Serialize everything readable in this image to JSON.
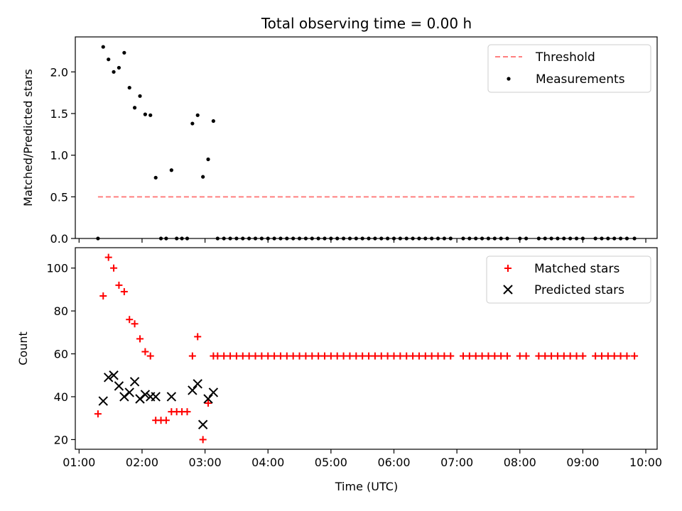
{
  "chart_data": [
    {
      "type": "scatter",
      "title": "Total observing time = 0.00 h",
      "xlabel": "",
      "ylabel": "Matched/Predicted stars",
      "x_tick_labels": [],
      "y_ticks": [
        0.0,
        0.5,
        1.0,
        1.5,
        2.0
      ],
      "y_tick_labels": [
        "0.0",
        "0.5",
        "1.0",
        "1.5",
        "2.0"
      ],
      "xlim": [
        0.94,
        10.18
      ],
      "ylim": [
        0.0,
        2.42
      ],
      "legend_position": "upper right",
      "series": [
        {
          "name": "Threshold",
          "kind": "dashed-line",
          "color": "#ff7f7f",
          "x": [
            1.3,
            9.82
          ],
          "y": [
            0.5,
            0.5
          ]
        },
        {
          "name": "Measurements",
          "kind": "dots",
          "color": "#000000",
          "x": [
            1.3,
            1.383,
            1.467,
            1.55,
            1.633,
            1.717,
            1.8,
            1.883,
            1.967,
            2.05,
            2.133,
            2.217,
            2.3,
            2.383,
            2.467,
            2.55,
            2.633,
            2.717,
            2.8,
            2.883,
            2.967,
            3.05,
            3.133,
            3.2,
            3.3,
            3.4,
            3.5,
            3.6,
            3.7,
            3.8,
            3.9,
            4.0,
            4.1,
            4.2,
            4.3,
            4.4,
            4.5,
            4.6,
            4.7,
            4.8,
            4.9,
            5.0,
            5.1,
            5.2,
            5.3,
            5.4,
            5.5,
            5.6,
            5.7,
            5.8,
            5.9,
            6.0,
            6.1,
            6.2,
            6.3,
            6.4,
            6.5,
            6.6,
            6.7,
            6.8,
            6.9,
            7.1,
            7.2,
            7.3,
            7.4,
            7.5,
            7.6,
            7.7,
            7.8,
            8.0,
            8.1,
            8.3,
            8.4,
            8.5,
            8.6,
            8.7,
            8.8,
            8.9,
            9.0,
            9.2,
            9.3,
            9.4,
            9.5,
            9.6,
            9.7,
            9.82
          ],
          "y": [
            0.0,
            2.3,
            2.15,
            2.0,
            2.05,
            2.23,
            1.81,
            1.57,
            1.71,
            1.49,
            1.48,
            0.73,
            0.0,
            0.0,
            0.82,
            0.0,
            0.0,
            0.0,
            1.38,
            1.48,
            0.74,
            0.95,
            1.41,
            0.0,
            0.0,
            0.0,
            0.0,
            0.0,
            0.0,
            0.0,
            0.0,
            0.0,
            0.0,
            0.0,
            0.0,
            0.0,
            0.0,
            0.0,
            0.0,
            0.0,
            0.0,
            0.0,
            0.0,
            0.0,
            0.0,
            0.0,
            0.0,
            0.0,
            0.0,
            0.0,
            0.0,
            0.0,
            0.0,
            0.0,
            0.0,
            0.0,
            0.0,
            0.0,
            0.0,
            0.0,
            0.0,
            0.0,
            0.0,
            0.0,
            0.0,
            0.0,
            0.0,
            0.0,
            0.0,
            0.0,
            0.0,
            0.0,
            0.0,
            0.0,
            0.0,
            0.0,
            0.0,
            0.0,
            0.0,
            0.0,
            0.0,
            0.0,
            0.0,
            0.0,
            0.0,
            0.0
          ]
        }
      ]
    },
    {
      "type": "scatter",
      "title": "",
      "xlabel": "Time (UTC)",
      "ylabel": "Count",
      "x_ticks": [
        1,
        2,
        3,
        4,
        5,
        6,
        7,
        8,
        9,
        10
      ],
      "x_tick_labels": [
        "01:00",
        "02:00",
        "03:00",
        "04:00",
        "05:00",
        "06:00",
        "07:00",
        "08:00",
        "09:00",
        "10:00"
      ],
      "y_ticks": [
        20,
        40,
        60,
        80,
        100
      ],
      "y_tick_labels": [
        "20",
        "40",
        "60",
        "80",
        "100"
      ],
      "xlim": [
        0.94,
        10.18
      ],
      "ylim": [
        15.5,
        109.5
      ],
      "legend_position": "upper right",
      "series": [
        {
          "name": "Matched stars",
          "kind": "plus",
          "color": "#ff0000",
          "x": [
            1.3,
            1.383,
            1.467,
            1.55,
            1.633,
            1.717,
            1.8,
            1.883,
            1.967,
            2.05,
            2.133,
            2.217,
            2.3,
            2.383,
            2.467,
            2.55,
            2.633,
            2.717,
            2.8,
            2.883,
            2.967,
            3.05,
            3.133,
            3.2,
            3.3,
            3.4,
            3.5,
            3.6,
            3.7,
            3.8,
            3.9,
            4.0,
            4.1,
            4.2,
            4.3,
            4.4,
            4.5,
            4.6,
            4.7,
            4.8,
            4.9,
            5.0,
            5.1,
            5.2,
            5.3,
            5.4,
            5.5,
            5.6,
            5.7,
            5.8,
            5.9,
            6.0,
            6.1,
            6.2,
            6.3,
            6.4,
            6.5,
            6.6,
            6.7,
            6.8,
            6.9,
            7.1,
            7.2,
            7.3,
            7.4,
            7.5,
            7.6,
            7.7,
            7.8,
            8.0,
            8.1,
            8.3,
            8.4,
            8.5,
            8.6,
            8.7,
            8.8,
            8.9,
            9.0,
            9.2,
            9.3,
            9.4,
            9.5,
            9.6,
            9.7,
            9.82
          ],
          "y": [
            32,
            87,
            105,
            100,
            92,
            89,
            76,
            74,
            67,
            61,
            59,
            29,
            29,
            29,
            33,
            33,
            33,
            33,
            59,
            68,
            20,
            37,
            59,
            59,
            59,
            59,
            59,
            59,
            59,
            59,
            59,
            59,
            59,
            59,
            59,
            59,
            59,
            59,
            59,
            59,
            59,
            59,
            59,
            59,
            59,
            59,
            59,
            59,
            59,
            59,
            59,
            59,
            59,
            59,
            59,
            59,
            59,
            59,
            59,
            59,
            59,
            59,
            59,
            59,
            59,
            59,
            59,
            59,
            59,
            59,
            59,
            59,
            59,
            59,
            59,
            59,
            59,
            59,
            59,
            59,
            59,
            59,
            59,
            59,
            59,
            59
          ]
        },
        {
          "name": "Predicted stars",
          "kind": "x",
          "color": "#000000",
          "x": [
            1.383,
            1.467,
            1.55,
            1.633,
            1.717,
            1.8,
            1.883,
            1.967,
            2.05,
            2.133,
            2.217,
            2.467,
            2.8,
            2.883,
            2.967,
            3.05,
            3.133
          ],
          "y": [
            38,
            49,
            50,
            45,
            40,
            42,
            47,
            39,
            41,
            40,
            40,
            40,
            43,
            46,
            27,
            39,
            42
          ]
        }
      ]
    }
  ]
}
